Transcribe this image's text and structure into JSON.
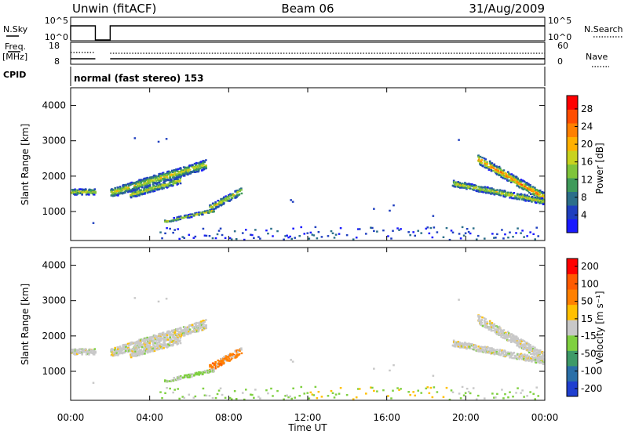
{
  "header": {
    "station": "Unwin (fitACF)",
    "beam": "Beam 06",
    "date": "31/Aug/2009"
  },
  "param_panels": {
    "nsky": {
      "label": "N.Sky",
      "ticks": [
        "10^5",
        "10^0"
      ]
    },
    "nsearch": {
      "label": "N.Search",
      "ticks": [
        "10^5",
        "10^0"
      ]
    },
    "freq": {
      "label1": "Freq.",
      "label2": "[MHz]",
      "ticks": [
        "18",
        "8"
      ]
    },
    "nave": {
      "label": "Nave",
      "ticks": [
        "60",
        "0"
      ]
    },
    "cpid": {
      "label": "CPID",
      "text": "normal (fast stereo) 153"
    }
  },
  "chart_data": [
    {
      "type": "heatmap",
      "name": "power",
      "ylabel": "Slant Range [km]",
      "xlabel": "Time UT",
      "x_ticks": [
        "00:00",
        "04:00",
        "08:00",
        "12:00",
        "16:00",
        "20:00",
        "00:00"
      ],
      "x_tick_hours": [
        0,
        4,
        8,
        12,
        16,
        20,
        24
      ],
      "y_ticks": [
        1000,
        2000,
        3000,
        4000
      ],
      "ylim": [
        180,
        4500
      ],
      "xlim": [
        0,
        24
      ],
      "colorbar": {
        "label": "Power [dB]",
        "ticks": [
          "28",
          "24",
          "20",
          "16",
          "12",
          "8",
          "4"
        ],
        "tick_values": [
          28,
          24,
          20,
          16,
          12,
          8,
          4
        ],
        "range": [
          0,
          31
        ],
        "colors": [
          "#1a1aff",
          "#1f3fbf",
          "#2c6f8a",
          "#3f9a5a",
          "#7fc43a",
          "#c8d21e",
          "#ffb000",
          "#ff8000",
          "#ff4d00",
          "#ff0000"
        ]
      },
      "echo_bands": [
        {
          "t_start": 0.0,
          "t_end": 1.2,
          "range_start": 1580,
          "range_end": 1580,
          "width": 160
        },
        {
          "t_start": 2.0,
          "t_end": 6.8,
          "range_start": 1550,
          "range_end": 2350,
          "width": 260
        },
        {
          "t_start": 3.0,
          "t_end": 5.5,
          "range_start": 1500,
          "range_end": 1900,
          "width": 180
        },
        {
          "t_start": 7.0,
          "t_end": 8.6,
          "range_start": 1120,
          "range_end": 1600,
          "width": 200
        },
        {
          "t_start": 4.7,
          "t_end": 7.2,
          "range_start": 740,
          "range_end": 1050,
          "width": 90
        },
        {
          "t_start": 20.6,
          "t_end": 24.0,
          "range_start": 2500,
          "range_end": 1400,
          "width": 260
        },
        {
          "t_start": 19.3,
          "t_end": 24.0,
          "range_start": 1820,
          "range_end": 1300,
          "width": 170
        }
      ]
    },
    {
      "type": "heatmap",
      "name": "velocity",
      "ylabel": "Slant Range [km]",
      "xlabel": "Time UT",
      "x_ticks": [
        "00:00",
        "04:00",
        "08:00",
        "12:00",
        "16:00",
        "20:00",
        "00:00"
      ],
      "y_ticks": [
        1000,
        2000,
        3000,
        4000
      ],
      "ylim": [
        180,
        4500
      ],
      "colorbar": {
        "label": "Velocity [m s⁻¹]",
        "ticks": [
          "200",
          "100",
          "50",
          "15",
          "-15",
          "-50",
          "-100",
          "-200"
        ],
        "colors": [
          "#1f3fd0",
          "#2a6fa8",
          "#3e9a68",
          "#7fd040",
          "#c8c8c8",
          "#ffc000",
          "#ff8000",
          "#ff5a00",
          "#ff0000"
        ]
      }
    }
  ]
}
